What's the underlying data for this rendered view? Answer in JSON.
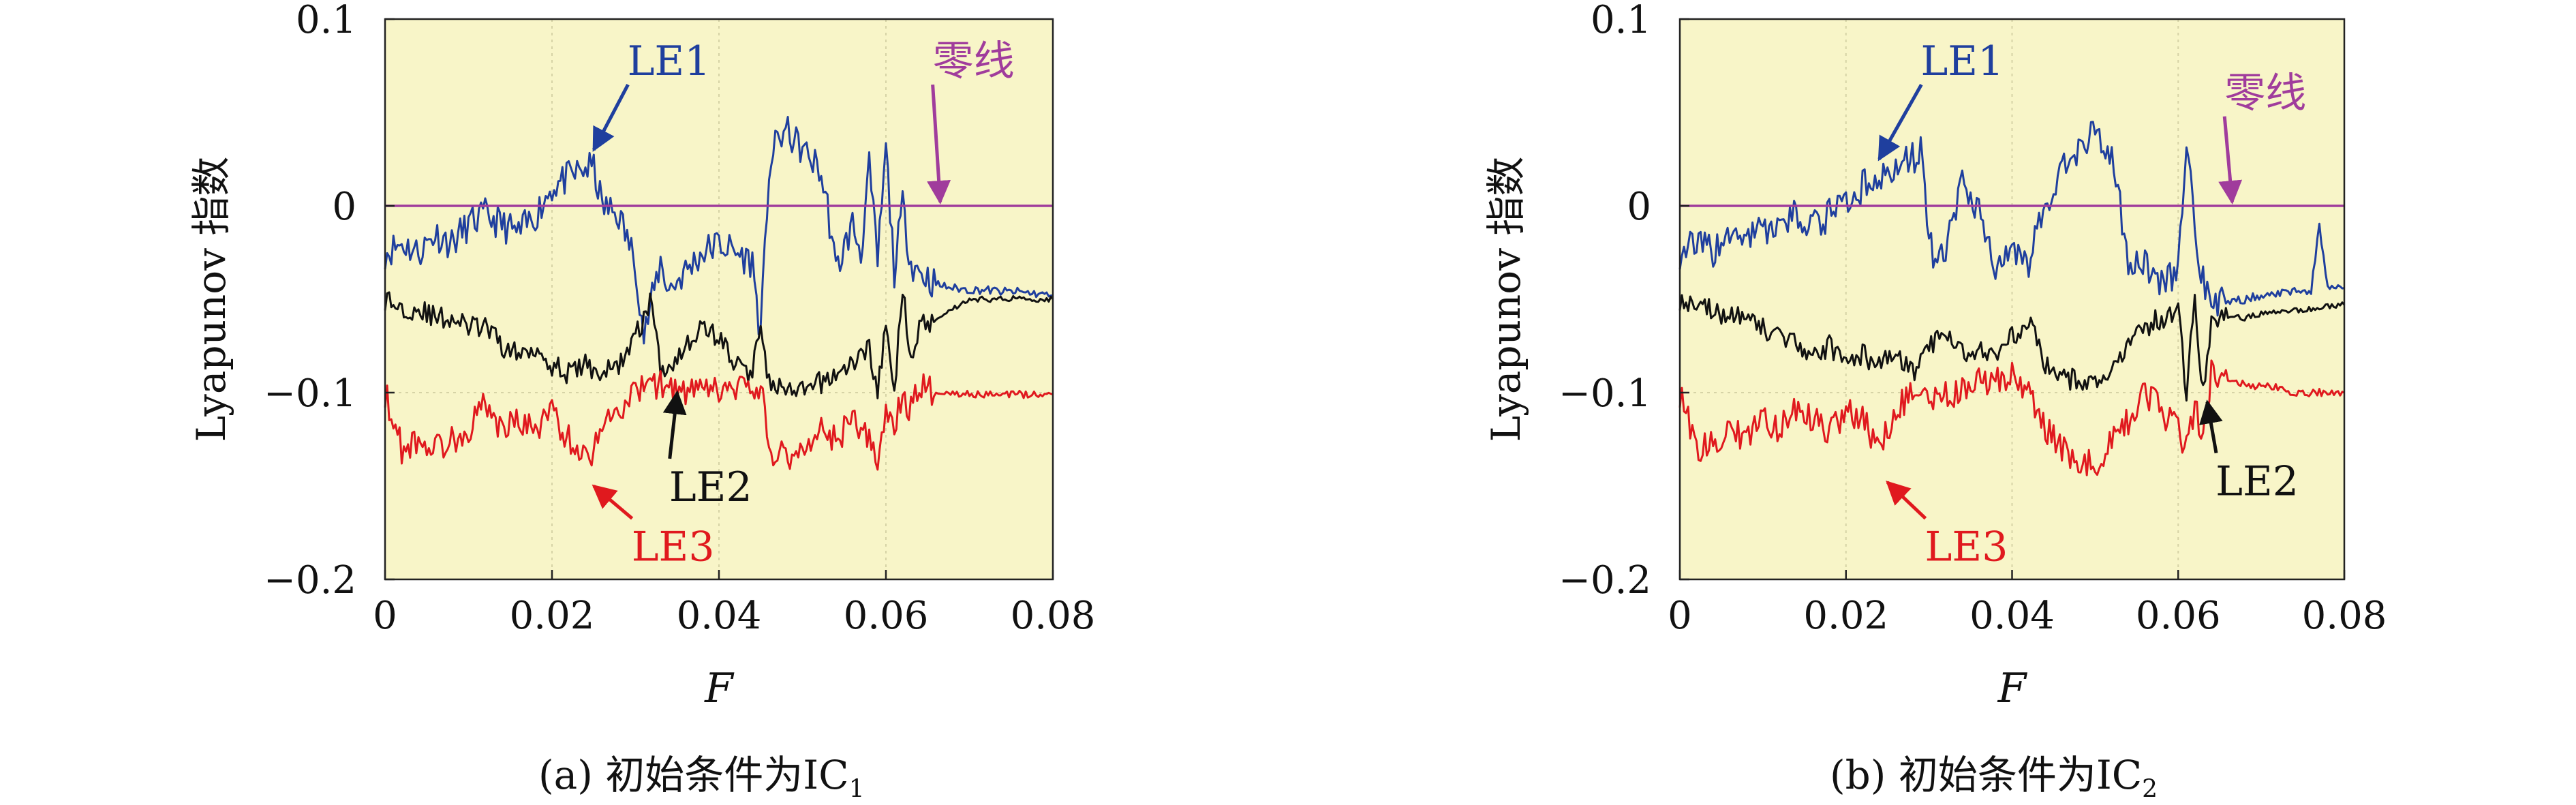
{
  "figure": {
    "panels": [
      {
        "caption_prefix": "(a) 初始条件为IC",
        "caption_sub": "1"
      },
      {
        "caption_prefix": "(b) 初始条件为IC",
        "caption_sub": "2"
      }
    ]
  },
  "chart_data": [
    {
      "type": "line",
      "xlabel": "F",
      "ylabel": "Lyapunov 指数",
      "xlim": [
        0,
        0.08
      ],
      "ylim": [
        -0.2,
        0.1
      ],
      "xticks": [
        0,
        0.02,
        0.04,
        0.06,
        0.08
      ],
      "xtick_labels": [
        "0",
        "0.02",
        "0.04",
        "0.06",
        "0.08"
      ],
      "yticks": [
        -0.2,
        -0.1,
        0,
        0.1
      ],
      "ytick_labels": [
        "−0.2",
        "−0.1",
        "0",
        "0.1"
      ],
      "grid": true,
      "colors": {
        "background": "#f8f5c8",
        "LE1": "#1f3f9e",
        "LE2": "#111111",
        "LE3": "#e0191e",
        "zero": "#a03c9c"
      },
      "series": [
        {
          "name": "LE1",
          "x": [
            0,
            0.002,
            0.004,
            0.006,
            0.008,
            0.01,
            0.012,
            0.014,
            0.016,
            0.018,
            0.02,
            0.022,
            0.024,
            0.025,
            0.026,
            0.028,
            0.03,
            0.031,
            0.032,
            0.033,
            0.034,
            0.036,
            0.038,
            0.04,
            0.042,
            0.044,
            0.045,
            0.046,
            0.047,
            0.048,
            0.05,
            0.052,
            0.053,
            0.054,
            0.056,
            0.057,
            0.058,
            0.059,
            0.06,
            0.061,
            0.062,
            0.063,
            0.064,
            0.066,
            0.068,
            0.07,
            0.072,
            0.074,
            0.076,
            0.078,
            0.08
          ],
          "y": [
            -0.025,
            -0.02,
            -0.025,
            -0.015,
            -0.02,
            -0.01,
            -0.005,
            -0.01,
            -0.015,
            -0.005,
            0.01,
            0.015,
            0.02,
            0.02,
            0.0,
            -0.005,
            -0.03,
            -0.07,
            -0.05,
            -0.03,
            -0.045,
            -0.035,
            -0.025,
            -0.02,
            -0.025,
            -0.03,
            -0.07,
            0.02,
            0.035,
            0.04,
            0.03,
            0.02,
            0.0,
            -0.035,
            -0.01,
            -0.025,
            0.02,
            -0.03,
            0.03,
            -0.035,
            0.0,
            -0.03,
            -0.035,
            -0.042,
            -0.044,
            -0.045,
            -0.045,
            -0.046,
            -0.046,
            -0.047,
            -0.048
          ]
        },
        {
          "name": "LE2",
          "x": [
            0,
            0.002,
            0.004,
            0.006,
            0.008,
            0.01,
            0.012,
            0.014,
            0.016,
            0.018,
            0.02,
            0.022,
            0.024,
            0.026,
            0.028,
            0.03,
            0.031,
            0.032,
            0.033,
            0.034,
            0.036,
            0.038,
            0.04,
            0.042,
            0.044,
            0.045,
            0.046,
            0.048,
            0.05,
            0.052,
            0.054,
            0.056,
            0.058,
            0.059,
            0.06,
            0.061,
            0.062,
            0.063,
            0.064,
            0.066,
            0.068,
            0.07,
            0.072,
            0.074,
            0.076,
            0.078,
            0.08
          ],
          "y": [
            -0.05,
            -0.055,
            -0.055,
            -0.06,
            -0.06,
            -0.065,
            -0.065,
            -0.075,
            -0.08,
            -0.075,
            -0.085,
            -0.09,
            -0.085,
            -0.09,
            -0.085,
            -0.07,
            -0.06,
            -0.05,
            -0.09,
            -0.085,
            -0.075,
            -0.065,
            -0.07,
            -0.085,
            -0.09,
            -0.06,
            -0.095,
            -0.1,
            -0.1,
            -0.095,
            -0.09,
            -0.085,
            -0.075,
            -0.1,
            -0.065,
            -0.1,
            -0.045,
            -0.08,
            -0.065,
            -0.06,
            -0.055,
            -0.05,
            -0.05,
            -0.05,
            -0.049,
            -0.05,
            -0.05
          ]
        },
        {
          "name": "LE3",
          "x": [
            0,
            0.002,
            0.004,
            0.006,
            0.008,
            0.01,
            0.012,
            0.014,
            0.016,
            0.018,
            0.02,
            0.022,
            0.024,
            0.025,
            0.026,
            0.028,
            0.03,
            0.031,
            0.032,
            0.034,
            0.036,
            0.038,
            0.04,
            0.042,
            0.044,
            0.045,
            0.046,
            0.048,
            0.05,
            0.052,
            0.054,
            0.056,
            0.058,
            0.059,
            0.06,
            0.061,
            0.062,
            0.063,
            0.064,
            0.066,
            0.068,
            0.07,
            0.072,
            0.074,
            0.076,
            0.078,
            0.08
          ],
          "y": [
            -0.1,
            -0.13,
            -0.125,
            -0.13,
            -0.125,
            -0.12,
            -0.105,
            -0.12,
            -0.115,
            -0.12,
            -0.11,
            -0.125,
            -0.135,
            -0.13,
            -0.115,
            -0.11,
            -0.1,
            -0.098,
            -0.095,
            -0.097,
            -0.1,
            -0.1,
            -0.099,
            -0.099,
            -0.098,
            -0.097,
            -0.13,
            -0.135,
            -0.13,
            -0.12,
            -0.125,
            -0.115,
            -0.125,
            -0.14,
            -0.11,
            -0.12,
            -0.1,
            -0.11,
            -0.095,
            -0.1,
            -0.1,
            -0.101,
            -0.101,
            -0.101,
            -0.101,
            -0.101,
            -0.101
          ]
        },
        {
          "name": "零线",
          "x": [
            0,
            0.08
          ],
          "y": [
            0,
            0
          ]
        }
      ],
      "annotations": [
        {
          "text": "LE1",
          "color": "#1f3f9e",
          "text_at": [
            0.034,
            0.07
          ],
          "arrow_to": [
            0.025,
            0.03
          ],
          "anchor": "middle"
        },
        {
          "text": "零线",
          "color": "#a03c9c",
          "text_at": [
            0.0705,
            0.07
          ],
          "arrow_to": [
            0.0665,
            0.002
          ],
          "anchor": "middle"
        },
        {
          "text": "LE2",
          "color": "#111111",
          "text_at": [
            0.039,
            -0.158
          ],
          "arrow_to": [
            0.035,
            -0.1
          ],
          "anchor": "middle"
        },
        {
          "text": "LE3",
          "color": "#e0191e",
          "text_at": [
            0.0345,
            -0.19
          ],
          "arrow_to": [
            0.025,
            -0.15
          ],
          "anchor": "middle"
        }
      ]
    },
    {
      "type": "line",
      "xlabel": "F",
      "ylabel": "Lyapunov 指数",
      "xlim": [
        0,
        0.08
      ],
      "ylim": [
        -0.2,
        0.1
      ],
      "xticks": [
        0,
        0.02,
        0.04,
        0.06,
        0.08
      ],
      "xtick_labels": [
        "0",
        "0.02",
        "0.04",
        "0.06",
        "0.08"
      ],
      "yticks": [
        -0.2,
        -0.1,
        0,
        0.1
      ],
      "ytick_labels": [
        "−0.2",
        "−0.1",
        "0",
        "0.1"
      ],
      "grid": true,
      "colors": {
        "background": "#f8f5c8",
        "LE1": "#1f3f9e",
        "LE2": "#111111",
        "LE3": "#e0191e",
        "zero": "#a03c9c"
      },
      "series": [
        {
          "name": "LE1",
          "x": [
            0,
            0.002,
            0.004,
            0.006,
            0.008,
            0.01,
            0.012,
            0.014,
            0.016,
            0.018,
            0.02,
            0.022,
            0.024,
            0.026,
            0.028,
            0.029,
            0.03,
            0.031,
            0.032,
            0.034,
            0.036,
            0.038,
            0.04,
            0.042,
            0.044,
            0.046,
            0.048,
            0.05,
            0.052,
            0.053,
            0.054,
            0.056,
            0.058,
            0.06,
            0.061,
            0.062,
            0.063,
            0.064,
            0.066,
            0.068,
            0.07,
            0.072,
            0.074,
            0.076,
            0.077,
            0.078,
            0.08
          ],
          "y": [
            -0.025,
            -0.02,
            -0.025,
            -0.015,
            -0.02,
            -0.01,
            -0.015,
            -0.005,
            -0.01,
            -0.005,
            0.0,
            0.01,
            0.015,
            0.02,
            0.025,
            0.03,
            -0.02,
            -0.03,
            -0.025,
            0.01,
            0.0,
            -0.035,
            -0.02,
            -0.03,
            0.0,
            0.02,
            0.03,
            0.04,
            0.025,
            0.0,
            -0.035,
            -0.03,
            -0.04,
            -0.035,
            0.03,
            -0.01,
            -0.04,
            -0.05,
            -0.052,
            -0.05,
            -0.048,
            -0.047,
            -0.046,
            -0.045,
            -0.01,
            -0.045,
            -0.044
          ]
        },
        {
          "name": "LE2",
          "x": [
            0,
            0.002,
            0.004,
            0.006,
            0.008,
            0.01,
            0.012,
            0.014,
            0.016,
            0.018,
            0.02,
            0.022,
            0.024,
            0.026,
            0.028,
            0.03,
            0.032,
            0.034,
            0.036,
            0.038,
            0.04,
            0.042,
            0.044,
            0.046,
            0.048,
            0.05,
            0.052,
            0.054,
            0.056,
            0.058,
            0.06,
            0.061,
            0.062,
            0.063,
            0.064,
            0.066,
            0.068,
            0.07,
            0.072,
            0.074,
            0.076,
            0.078,
            0.08
          ],
          "y": [
            -0.05,
            -0.055,
            -0.055,
            -0.06,
            -0.06,
            -0.065,
            -0.07,
            -0.075,
            -0.08,
            -0.075,
            -0.085,
            -0.08,
            -0.085,
            -0.08,
            -0.09,
            -0.075,
            -0.07,
            -0.08,
            -0.075,
            -0.08,
            -0.07,
            -0.06,
            -0.085,
            -0.09,
            -0.095,
            -0.095,
            -0.09,
            -0.075,
            -0.065,
            -0.06,
            -0.055,
            -0.1,
            -0.05,
            -0.1,
            -0.06,
            -0.06,
            -0.06,
            -0.058,
            -0.057,
            -0.056,
            -0.055,
            -0.054,
            -0.053
          ]
        },
        {
          "name": "LE3",
          "x": [
            0,
            0.002,
            0.004,
            0.006,
            0.008,
            0.01,
            0.012,
            0.014,
            0.016,
            0.018,
            0.02,
            0.022,
            0.024,
            0.026,
            0.028,
            0.03,
            0.032,
            0.034,
            0.036,
            0.038,
            0.04,
            0.042,
            0.044,
            0.046,
            0.048,
            0.05,
            0.052,
            0.054,
            0.056,
            0.058,
            0.06,
            0.061,
            0.062,
            0.063,
            0.064,
            0.066,
            0.068,
            0.07,
            0.072,
            0.074,
            0.076,
            0.078,
            0.08
          ],
          "y": [
            -0.1,
            -0.13,
            -0.125,
            -0.12,
            -0.125,
            -0.115,
            -0.12,
            -0.11,
            -0.115,
            -0.12,
            -0.11,
            -0.115,
            -0.13,
            -0.11,
            -0.1,
            -0.105,
            -0.1,
            -0.1,
            -0.095,
            -0.095,
            -0.09,
            -0.1,
            -0.12,
            -0.13,
            -0.135,
            -0.14,
            -0.125,
            -0.115,
            -0.1,
            -0.11,
            -0.12,
            -0.13,
            -0.11,
            -0.12,
            -0.09,
            -0.095,
            -0.095,
            -0.097,
            -0.097,
            -0.1,
            -0.1,
            -0.1,
            -0.1
          ]
        },
        {
          "name": "零线",
          "x": [
            0,
            0.08
          ],
          "y": [
            0,
            0
          ]
        }
      ],
      "annotations": [
        {
          "text": "LE1",
          "color": "#1f3f9e",
          "text_at": [
            0.034,
            0.07
          ],
          "arrow_to": [
            0.024,
            0.025
          ],
          "anchor": "middle"
        },
        {
          "text": "零线",
          "color": "#a03c9c",
          "text_at": [
            0.0705,
            0.053
          ],
          "arrow_to": [
            0.0665,
            0.002
          ],
          "anchor": "middle"
        },
        {
          "text": "LE2",
          "color": "#111111",
          "text_at": [
            0.0695,
            -0.155
          ],
          "arrow_to": [
            0.0635,
            -0.105
          ],
          "anchor": "middle"
        },
        {
          "text": "LE3",
          "color": "#e0191e",
          "text_at": [
            0.0345,
            -0.19
          ],
          "arrow_to": [
            0.025,
            -0.148
          ],
          "anchor": "middle"
        }
      ]
    }
  ]
}
